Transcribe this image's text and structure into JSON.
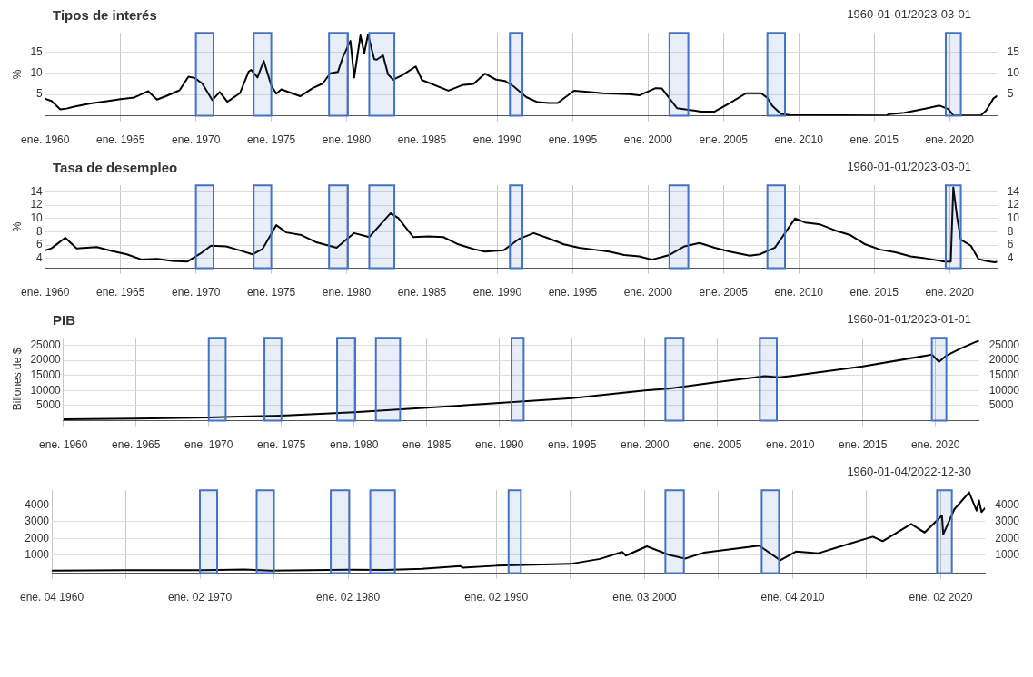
{
  "chart_data": [
    {
      "type": "line",
      "title": "Tipos de interés",
      "subtitle": "1960-01-01/2023-03-01",
      "ylabel": "%",
      "color": "#000000",
      "x": [
        "1960-01",
        "1960-06",
        "1961-01",
        "1961-06",
        "1962-01",
        "1963-01",
        "1964-01",
        "1965-01",
        "1965-12",
        "1966-11",
        "1967-06",
        "1968-01",
        "1968-12",
        "1969-07",
        "1969-12",
        "1970-06",
        "1971-02",
        "1971-08",
        "1972-02",
        "1972-12",
        "1973-07",
        "1973-09",
        "1974-02",
        "1974-07",
        "1975-01",
        "1975-05",
        "1975-09",
        "1976-12",
        "1977-10",
        "1978-06",
        "1978-12",
        "1979-06",
        "1979-10",
        "1980-04",
        "1980-07",
        "1980-12",
        "1981-03",
        "1981-06",
        "1981-11",
        "1982-01",
        "1982-06",
        "1982-10",
        "1983-02",
        "1983-09",
        "1984-08",
        "1985-01",
        "1986-10",
        "1987-09",
        "1988-06",
        "1989-03",
        "1989-12",
        "1990-07",
        "1991-02",
        "1991-12",
        "1992-09",
        "1993-06",
        "1994-01",
        "1995-02",
        "1996-01",
        "1997-01",
        "1998-10",
        "1999-06",
        "2000-07",
        "2000-12",
        "2001-12",
        "2002-12",
        "2003-07",
        "2004-06",
        "2005-06",
        "2006-07",
        "2007-07",
        "2007-12",
        "2008-04",
        "2008-11",
        "2009-06",
        "2015-11",
        "2016-01",
        "2017-01",
        "2018-01",
        "2019-05",
        "2019-12",
        "2020-04",
        "2022-02",
        "2022-06",
        "2022-09",
        "2022-12",
        "2023-03"
      ],
      "values": [
        4.0,
        3.5,
        1.5,
        1.7,
        2.2,
        2.9,
        3.4,
        3.9,
        4.3,
        5.8,
        3.8,
        4.6,
        6.0,
        9.2,
        8.9,
        7.6,
        3.7,
        5.6,
        3.3,
        5.3,
        10.4,
        10.8,
        9.0,
        12.9,
        7.1,
        5.2,
        6.2,
        4.6,
        6.5,
        7.6,
        10.0,
        10.3,
        13.8,
        17.6,
        9.0,
        18.9,
        14.7,
        19.1,
        13.3,
        13.2,
        14.2,
        9.7,
        8.5,
        9.5,
        11.6,
        8.4,
        5.9,
        7.2,
        7.5,
        9.9,
        8.5,
        8.2,
        6.9,
        4.4,
        3.2,
        3.0,
        3.0,
        5.9,
        5.6,
        5.3,
        5.1,
        4.8,
        6.5,
        6.4,
        1.8,
        1.3,
        1.0,
        1.0,
        3.0,
        5.3,
        5.3,
        4.2,
        2.3,
        0.4,
        0.2,
        0.1,
        0.4,
        0.7,
        1.4,
        2.4,
        1.6,
        0.1,
        0.1,
        1.2,
        2.6,
        4.1,
        4.7
      ],
      "xlim": [
        "1960-01",
        "2023-03"
      ],
      "xticks": [
        {
          "value": "1960-01",
          "label": "ene. 1960"
        },
        {
          "value": "1965-01",
          "label": "ene. 1965"
        },
        {
          "value": "1970-01",
          "label": "ene. 1970"
        },
        {
          "value": "1975-01",
          "label": "ene. 1975"
        },
        {
          "value": "1980-01",
          "label": "ene. 1980"
        },
        {
          "value": "1985-01",
          "label": "ene. 1985"
        },
        {
          "value": "1990-01",
          "label": "ene. 1990"
        },
        {
          "value": "1995-01",
          "label": "ene. 1995"
        },
        {
          "value": "2000-01",
          "label": "ene. 2000"
        },
        {
          "value": "2005-01",
          "label": "ene. 2005"
        },
        {
          "value": "2010-01",
          "label": "ene. 2010"
        },
        {
          "value": "2015-01",
          "label": "ene. 2015"
        },
        {
          "value": "2020-01",
          "label": "ene. 2020"
        }
      ],
      "ylim": [
        0,
        19.5
      ],
      "yticks": [
        5,
        10,
        15
      ],
      "y2lim": [
        0,
        19.5
      ],
      "y2ticks": [
        5,
        10,
        15
      ],
      "grid": true,
      "bands": [
        {
          "axis": "x",
          "from": "1970-01",
          "to": "1971-03",
          "label": null,
          "color": "#4472c4"
        },
        {
          "axis": "x",
          "from": "1973-11",
          "to": "1975-01",
          "label": null,
          "color": "#4472c4"
        },
        {
          "axis": "x",
          "from": "1978-11",
          "to": "1980-02",
          "label": null,
          "color": "#4472c4"
        },
        {
          "axis": "x",
          "from": "1981-07",
          "to": "1983-03",
          "label": null,
          "color": "#4472c4"
        },
        {
          "axis": "x",
          "from": "1990-11",
          "to": "1991-09",
          "label": null,
          "color": "#4472c4"
        },
        {
          "axis": "x",
          "from": "2001-06",
          "to": "2002-09",
          "label": null,
          "color": "#4472c4"
        },
        {
          "axis": "x",
          "from": "2007-12",
          "to": "2009-02",
          "label": null,
          "color": "#4472c4"
        },
        {
          "axis": "x",
          "from": "2019-10",
          "to": "2020-10",
          "label": null,
          "color": "#4472c4"
        }
      ]
    },
    {
      "type": "line",
      "title": "Tasa de desempleo",
      "subtitle": "1960-01-01/2023-03-01",
      "ylabel": "%",
      "color": "#000000",
      "x": [
        "1960-01",
        "1960-06",
        "1961-05",
        "1962-02",
        "1963-06",
        "1964-06",
        "1965-06",
        "1966-06",
        "1967-06",
        "1968-06",
        "1969-06",
        "1970-06",
        "1971-01",
        "1972-01",
        "1972-12",
        "1973-10",
        "1974-06",
        "1975-05",
        "1976-01",
        "1977-01",
        "1978-01",
        "1979-05",
        "1980-07",
        "1981-07",
        "1982-12",
        "1983-06",
        "1984-06",
        "1985-06",
        "1986-06",
        "1987-06",
        "1988-06",
        "1989-03",
        "1990-06",
        "1991-06",
        "1992-06",
        "1993-06",
        "1994-06",
        "1995-06",
        "1996-06",
        "1997-06",
        "1998-06",
        "1999-06",
        "2000-04",
        "2001-06",
        "2002-06",
        "2003-06",
        "2004-06",
        "2005-06",
        "2006-10",
        "2007-06",
        "2008-06",
        "2009-10",
        "2010-06",
        "2011-06",
        "2012-06",
        "2013-06",
        "2014-06",
        "2015-06",
        "2016-06",
        "2017-06",
        "2018-06",
        "2019-09",
        "2020-02",
        "2020-04",
        "2020-07",
        "2020-10",
        "2021-06",
        "2021-12",
        "2022-06",
        "2023-01",
        "2023-03"
      ],
      "values": [
        5.2,
        5.5,
        7.1,
        5.5,
        5.7,
        5.1,
        4.6,
        3.8,
        3.9,
        3.6,
        3.5,
        4.9,
        5.9,
        5.8,
        5.2,
        4.6,
        5.4,
        9.0,
        7.9,
        7.5,
        6.4,
        5.6,
        7.8,
        7.2,
        10.8,
        10.1,
        7.2,
        7.3,
        7.2,
        6.1,
        5.4,
        5.0,
        5.2,
        6.9,
        7.8,
        7.0,
        6.1,
        5.6,
        5.3,
        5.0,
        4.5,
        4.3,
        3.8,
        4.5,
        5.8,
        6.3,
        5.6,
        5.0,
        4.4,
        4.6,
        5.6,
        10.0,
        9.4,
        9.1,
        8.2,
        7.5,
        6.1,
        5.3,
        4.9,
        4.3,
        4.0,
        3.5,
        3.5,
        14.7,
        10.2,
        6.8,
        5.9,
        3.9,
        3.6,
        3.4,
        3.5
      ],
      "xlim": [
        "1960-01",
        "2023-03"
      ],
      "xticks": [
        {
          "value": "1960-01",
          "label": "ene. 1960"
        },
        {
          "value": "1965-01",
          "label": "ene. 1965"
        },
        {
          "value": "1970-01",
          "label": "ene. 1970"
        },
        {
          "value": "1975-01",
          "label": "ene. 1975"
        },
        {
          "value": "1980-01",
          "label": "ene. 1980"
        },
        {
          "value": "1985-01",
          "label": "ene. 1985"
        },
        {
          "value": "1990-01",
          "label": "ene. 1990"
        },
        {
          "value": "1995-01",
          "label": "ene. 1995"
        },
        {
          "value": "2000-01",
          "label": "ene. 2000"
        },
        {
          "value": "2005-01",
          "label": "ene. 2005"
        },
        {
          "value": "2010-01",
          "label": "ene. 2010"
        },
        {
          "value": "2015-01",
          "label": "ene. 2015"
        },
        {
          "value": "2020-01",
          "label": "ene. 2020"
        }
      ],
      "ylim": [
        2.5,
        15
      ],
      "yticks": [
        4,
        6,
        8,
        10,
        12,
        14
      ],
      "y2lim": [
        2.5,
        15
      ],
      "y2ticks": [
        4,
        6,
        8,
        10,
        12,
        14
      ],
      "grid": true,
      "bands": [
        {
          "axis": "x",
          "from": "1970-01",
          "to": "1971-03",
          "label": null,
          "color": "#4472c4"
        },
        {
          "axis": "x",
          "from": "1973-11",
          "to": "1975-01",
          "label": null,
          "color": "#4472c4"
        },
        {
          "axis": "x",
          "from": "1978-11",
          "to": "1980-02",
          "label": null,
          "color": "#4472c4"
        },
        {
          "axis": "x",
          "from": "1981-07",
          "to": "1983-03",
          "label": null,
          "color": "#4472c4"
        },
        {
          "axis": "x",
          "from": "1990-11",
          "to": "1991-09",
          "label": null,
          "color": "#4472c4"
        },
        {
          "axis": "x",
          "from": "2001-06",
          "to": "2002-09",
          "label": null,
          "color": "#4472c4"
        },
        {
          "axis": "x",
          "from": "2007-12",
          "to": "2009-02",
          "label": null,
          "color": "#4472c4"
        },
        {
          "axis": "x",
          "from": "2019-10",
          "to": "2020-10",
          "label": null,
          "color": "#4472c4"
        }
      ]
    },
    {
      "type": "line",
      "title": "PIB",
      "subtitle": "1960-01-01/2023-01-01",
      "ylabel": "Billones de $",
      "color": "#000000",
      "x": [
        "1960-01",
        "1965-01",
        "1970-01",
        "1975-01",
        "1980-01",
        "1985-01",
        "1990-01",
        "1995-01",
        "2000-01",
        "2001-10",
        "2005-01",
        "2008-04",
        "2009-04",
        "2010-01",
        "2015-01",
        "2019-10",
        "2020-04",
        "2020-10",
        "2021-10",
        "2022-10",
        "2023-01"
      ],
      "values": [
        500,
        700,
        1100,
        1700,
        2800,
        4300,
        5900,
        7500,
        10000,
        10700,
        12800,
        14800,
        14400,
        14800,
        18000,
        21900,
        19500,
        21600,
        24000,
        26100,
        26500
      ],
      "xlim": [
        "1960-01",
        "2023-01"
      ],
      "xticks": [
        {
          "value": "1960-01",
          "label": "ene. 1960"
        },
        {
          "value": "1965-01",
          "label": "ene. 1965"
        },
        {
          "value": "1970-01",
          "label": "ene. 1970"
        },
        {
          "value": "1975-01",
          "label": "ene. 1975"
        },
        {
          "value": "1980-01",
          "label": "ene. 1980"
        },
        {
          "value": "1985-01",
          "label": "ene. 1985"
        },
        {
          "value": "1990-01",
          "label": "ene. 1990"
        },
        {
          "value": "1995-01",
          "label": "ene. 1995"
        },
        {
          "value": "2000-01",
          "label": "ene. 2000"
        },
        {
          "value": "2005-01",
          "label": "ene. 2005"
        },
        {
          "value": "2010-01",
          "label": "ene. 2010"
        },
        {
          "value": "2015-01",
          "label": "ene. 2015"
        },
        {
          "value": "2020-01",
          "label": "ene. 2020"
        }
      ],
      "ylim": [
        0,
        27500
      ],
      "yticks": [
        5000,
        10000,
        15000,
        20000,
        25000
      ],
      "y2lim": [
        0,
        27500
      ],
      "y2ticks": [
        5000,
        10000,
        15000,
        20000,
        25000
      ],
      "grid": true,
      "bands": [
        {
          "axis": "x",
          "from": "1970-01",
          "to": "1971-03",
          "label": null,
          "color": "#4472c4"
        },
        {
          "axis": "x",
          "from": "1973-11",
          "to": "1975-01",
          "label": null,
          "color": "#4472c4"
        },
        {
          "axis": "x",
          "from": "1978-11",
          "to": "1980-02",
          "label": null,
          "color": "#4472c4"
        },
        {
          "axis": "x",
          "from": "1981-07",
          "to": "1983-03",
          "label": null,
          "color": "#4472c4"
        },
        {
          "axis": "x",
          "from": "1990-11",
          "to": "1991-09",
          "label": null,
          "color": "#4472c4"
        },
        {
          "axis": "x",
          "from": "2001-06",
          "to": "2002-09",
          "label": null,
          "color": "#4472c4"
        },
        {
          "axis": "x",
          "from": "2007-12",
          "to": "2009-02",
          "label": null,
          "color": "#4472c4"
        },
        {
          "axis": "x",
          "from": "2019-10",
          "to": "2020-10",
          "label": null,
          "color": "#4472c4"
        }
      ]
    },
    {
      "type": "line",
      "subtitle": "1960-01-04/2022-12-30",
      "color": "#000000",
      "x": [
        "1960-01-04",
        "1965-01",
        "1970-01",
        "1973-01",
        "1974-10",
        "1980-01",
        "1982-08",
        "1985-01",
        "1987-08",
        "1987-10",
        "1990-01",
        "1995-01",
        "1997-01",
        "1998-07",
        "1998-10",
        "2000-03",
        "2001-09",
        "2002-10",
        "2004-01",
        "2007-10",
        "2009-03",
        "2010-04",
        "2011-10",
        "2013-01",
        "2015-06",
        "2016-02",
        "2018-01",
        "2018-12",
        "2020-02",
        "2020-03",
        "2020-12",
        "2021-12",
        "2022-06",
        "2022-08",
        "2022-10",
        "2022-12-30"
      ],
      "values": [
        60,
        90,
        90,
        120,
        60,
        110,
        100,
        170,
        330,
        230,
        350,
        460,
        760,
        1180,
        960,
        1520,
        1000,
        780,
        1130,
        1560,
        680,
        1210,
        1100,
        1450,
        2100,
        1830,
        2870,
        2350,
        3380,
        2240,
        3750,
        4770,
        3670,
        4280,
        3580,
        3840
      ],
      "xlim": [
        "1960-01-04",
        "2022-12-30"
      ],
      "xticks": [
        {
          "value": "1960-01-04",
          "label": "ene. 04 1960"
        },
        {
          "value": "1965-01",
          "label": null
        },
        {
          "value": "1970-01-02",
          "label": "ene. 02 1970"
        },
        {
          "value": "1975-01",
          "label": null
        },
        {
          "value": "1980-01-02",
          "label": "ene. 02 1980"
        },
        {
          "value": "1985-01",
          "label": null
        },
        {
          "value": "1990-01-02",
          "label": "ene. 02 1990"
        },
        {
          "value": "1995-01",
          "label": null
        },
        {
          "value": "2000-01-03",
          "label": "ene. 03 2000"
        },
        {
          "value": "2005-01",
          "label": null
        },
        {
          "value": "2010-01-04",
          "label": "ene. 04 2010"
        },
        {
          "value": "2015-01",
          "label": null
        },
        {
          "value": "2020-01-02",
          "label": "ene. 02 2020"
        }
      ],
      "ylim": [
        -100,
        4900
      ],
      "yticks": [
        1000,
        2000,
        3000,
        4000
      ],
      "y2lim": [
        -100,
        4900
      ],
      "y2ticks": [
        1000,
        2000,
        3000,
        4000
      ],
      "grid": true,
      "bands": [
        {
          "axis": "x",
          "from": "1970-01",
          "to": "1971-03",
          "label": null,
          "color": "#4472c4"
        },
        {
          "axis": "x",
          "from": "1973-11",
          "to": "1975-01",
          "label": null,
          "color": "#4472c4"
        },
        {
          "axis": "x",
          "from": "1978-11",
          "to": "1980-02",
          "label": null,
          "color": "#4472c4"
        },
        {
          "axis": "x",
          "from": "1981-07",
          "to": "1983-03",
          "label": null,
          "color": "#4472c4"
        },
        {
          "axis": "x",
          "from": "1990-11",
          "to": "1991-09",
          "label": null,
          "color": "#4472c4"
        },
        {
          "axis": "x",
          "from": "2001-06",
          "to": "2002-09",
          "label": null,
          "color": "#4472c4"
        },
        {
          "axis": "x",
          "from": "2007-12",
          "to": "2009-02",
          "label": null,
          "color": "#4472c4"
        },
        {
          "axis": "x",
          "from": "2019-10",
          "to": "2020-10",
          "label": null,
          "color": "#4472c4"
        }
      ]
    }
  ]
}
